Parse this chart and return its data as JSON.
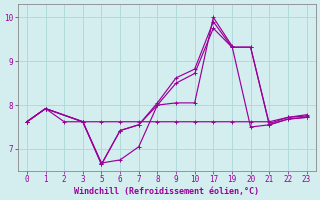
{
  "xlabel": "Windchill (Refroidissement éolien,°C)",
  "background_color": "#d4eef0",
  "line_color": "#990099",
  "grid_color": "#a8d8d8",
  "ylim": [
    6.5,
    10.3
  ],
  "yticks": [
    7,
    8,
    9,
    10
  ],
  "xlabels": [
    "0",
    "1",
    "2",
    "3",
    "5",
    "6",
    "7",
    "8",
    "9",
    "10",
    "17",
    "19",
    "20",
    "21",
    "22",
    "23"
  ],
  "series": [
    {
      "xi": [
        0,
        1,
        3,
        4,
        5,
        6,
        7,
        8,
        9,
        10,
        11,
        12,
        13,
        14,
        15
      ],
      "y": [
        7.62,
        7.92,
        7.62,
        6.68,
        6.75,
        7.05,
        8.0,
        8.05,
        8.05,
        10.0,
        9.35,
        7.5,
        7.55,
        7.68,
        7.72
      ]
    },
    {
      "xi": [
        0,
        1,
        3,
        4,
        5,
        6,
        7,
        8,
        9,
        10,
        11,
        12,
        13,
        14,
        15
      ],
      "y": [
        7.62,
        7.92,
        7.62,
        6.65,
        7.42,
        7.55,
        8.0,
        8.5,
        8.72,
        9.75,
        9.32,
        9.32,
        7.55,
        7.68,
        7.72
      ]
    },
    {
      "xi": [
        0,
        1,
        3,
        4,
        5,
        6,
        7,
        8,
        9,
        10,
        11,
        12,
        13,
        14,
        15
      ],
      "y": [
        7.62,
        7.92,
        7.62,
        6.65,
        7.42,
        7.55,
        8.05,
        8.62,
        8.82,
        9.9,
        9.32,
        9.32,
        7.58,
        7.72,
        7.78
      ]
    },
    {
      "xi": [
        0,
        1,
        2,
        3,
        4,
        5,
        6,
        7,
        8,
        9,
        10,
        11,
        12,
        13,
        14,
        15
      ],
      "y": [
        7.62,
        7.92,
        7.62,
        7.62,
        7.62,
        7.62,
        7.62,
        7.62,
        7.62,
        7.62,
        7.62,
        7.62,
        7.62,
        7.62,
        7.72,
        7.75
      ]
    }
  ],
  "markers": [
    {
      "xi": 1,
      "y": 7.92
    },
    {
      "xi": 4,
      "y": 6.68
    },
    {
      "xi": 7,
      "y": 8.0
    },
    {
      "xi": 9,
      "y": 8.05
    },
    {
      "xi": 10,
      "y": 10.0
    },
    {
      "xi": 11,
      "y": 9.35
    }
  ]
}
